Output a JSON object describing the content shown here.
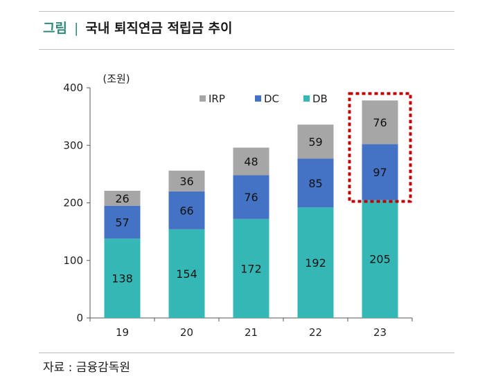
{
  "header": {
    "figure_label": "그림",
    "separator": "|",
    "title": "국내 퇴직연금 적립금 추이"
  },
  "source": "자료 : 금융감독원",
  "highlight_color": "#c00000",
  "chart_data": {
    "type": "bar",
    "stacked": true,
    "unit_label": "(조원)",
    "categories": [
      "19",
      "20",
      "21",
      "22",
      "23"
    ],
    "series": [
      {
        "name": "DB",
        "color": "#35b8b5",
        "values": [
          138,
          154,
          172,
          192,
          205
        ]
      },
      {
        "name": "DC",
        "color": "#4472c4",
        "values": [
          57,
          66,
          76,
          85,
          97
        ]
      },
      {
        "name": "IRP",
        "color": "#a6a6a6",
        "values": [
          26,
          36,
          48,
          59,
          76
        ]
      }
    ],
    "legend_order": [
      "IRP",
      "DC",
      "DB"
    ],
    "legend_position": "top-right",
    "ylim": [
      0,
      400
    ],
    "yticks": [
      0,
      100,
      200,
      300,
      400
    ],
    "highlighted_category": "23",
    "grid": false
  }
}
